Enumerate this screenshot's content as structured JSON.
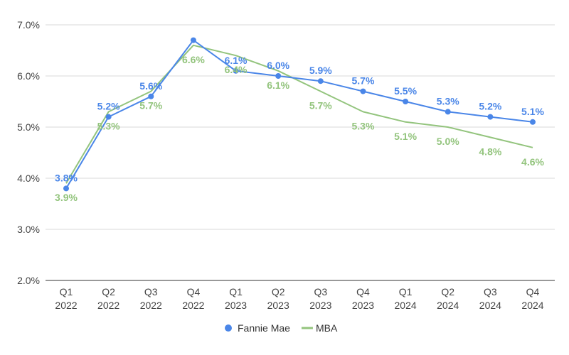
{
  "chart_data": {
    "type": "line",
    "categories": [
      [
        "Q1",
        "2022"
      ],
      [
        "Q2",
        "2022"
      ],
      [
        "Q3",
        "2022"
      ],
      [
        "Q4",
        "2022"
      ],
      [
        "Q1",
        "2023"
      ],
      [
        "Q2",
        "2023"
      ],
      [
        "Q3",
        "2023"
      ],
      [
        "Q4",
        "2023"
      ],
      [
        "Q1",
        "2024"
      ],
      [
        "Q2",
        "2024"
      ],
      [
        "Q3",
        "2024"
      ],
      [
        "Q4",
        "2024"
      ]
    ],
    "ylim": [
      2.0,
      7.0
    ],
    "yticks": [
      2.0,
      3.0,
      4.0,
      5.0,
      6.0,
      7.0
    ],
    "ytick_labels": [
      "2.0%",
      "3.0%",
      "4.0%",
      "5.0%",
      "6.0%",
      "7.0%"
    ],
    "grid": true,
    "legend_position": "bottom",
    "series": [
      {
        "name": "Fannie Mae",
        "color": "#4a86e8",
        "marker": "circle",
        "values": [
          3.8,
          5.2,
          5.6,
          6.7,
          6.1,
          6.0,
          5.9,
          5.7,
          5.5,
          5.3,
          5.2,
          5.1
        ],
        "labels": [
          "3.8%",
          "5.2%",
          "5.6%",
          "",
          "6.1%",
          "6.0%",
          "5.9%",
          "5.7%",
          "5.5%",
          "5.3%",
          "5.2%",
          "5.1%"
        ],
        "label_position": "above"
      },
      {
        "name": "MBA",
        "color": "#93c47d",
        "marker": "none",
        "values": [
          3.9,
          5.3,
          5.7,
          6.6,
          6.4,
          6.1,
          5.7,
          5.3,
          5.1,
          5.0,
          4.8,
          4.6
        ],
        "labels": [
          "3.9%",
          "5.3%",
          "5.7%",
          "6.6%",
          "6.4%",
          "6.1%",
          "5.7%",
          "5.3%",
          "5.1%",
          "5.0%",
          "4.8%",
          "4.6%"
        ],
        "label_position": "below"
      }
    ]
  }
}
